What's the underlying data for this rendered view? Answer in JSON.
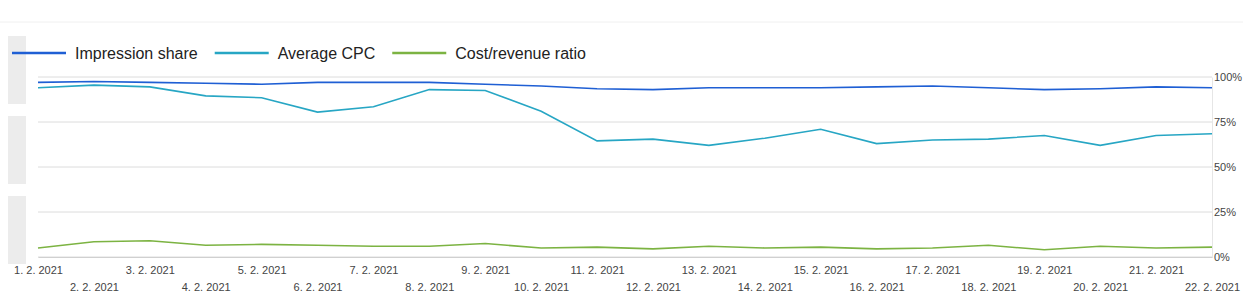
{
  "chart_data": {
    "type": "line",
    "categories": [
      "1. 2. 2021",
      "2. 2. 2021",
      "3. 2. 2021",
      "4. 2. 2021",
      "5. 2. 2021",
      "6. 2. 2021",
      "7. 2. 2021",
      "8. 2. 2021",
      "9. 2. 2021",
      "10. 2. 2021",
      "11. 2. 2021",
      "12. 2. 2021",
      "13. 2. 2021",
      "14. 2. 2021",
      "15. 2. 2021",
      "16. 2. 2021",
      "17. 2. 2021",
      "18. 2. 2021",
      "19. 2. 2021",
      "20. 2. 2021",
      "21. 2. 2021",
      "22. 2. 2021"
    ],
    "series": [
      {
        "name": "Impression share",
        "color": "#1f5fd4",
        "values": [
          97,
          97.5,
          97,
          96.5,
          96,
          97,
          97,
          97,
          96,
          95,
          93.5,
          93,
          94,
          94,
          94,
          94.5,
          95,
          94,
          93,
          93.5,
          94.5,
          94
        ]
      },
      {
        "name": "Average CPC",
        "color": "#27a6c4",
        "values": [
          94,
          95.5,
          94.5,
          89.5,
          88.5,
          80.5,
          83.5,
          93,
          92.5,
          81,
          64.5,
          65.5,
          62,
          66,
          71,
          63,
          65,
          65.5,
          67.5,
          62,
          67.5,
          68.5
        ]
      },
      {
        "name": "Cost/revenue ratio",
        "color": "#7cb342",
        "values": [
          5,
          8.5,
          9,
          6.5,
          7,
          6.5,
          6,
          6,
          7.5,
          5,
          5.5,
          4.5,
          6,
          5,
          5.5,
          4.5,
          5,
          6.5,
          4,
          6,
          5,
          5.5
        ]
      }
    ],
    "ylim": [
      0,
      100
    ],
    "yticks": [
      {
        "value": 0,
        "label": "0%"
      },
      {
        "value": 25,
        "label": "25%"
      },
      {
        "value": 50,
        "label": "50%"
      },
      {
        "value": 75,
        "label": "75%"
      },
      {
        "value": 100,
        "label": "100%"
      }
    ],
    "grid": true,
    "legend": "top-left"
  }
}
